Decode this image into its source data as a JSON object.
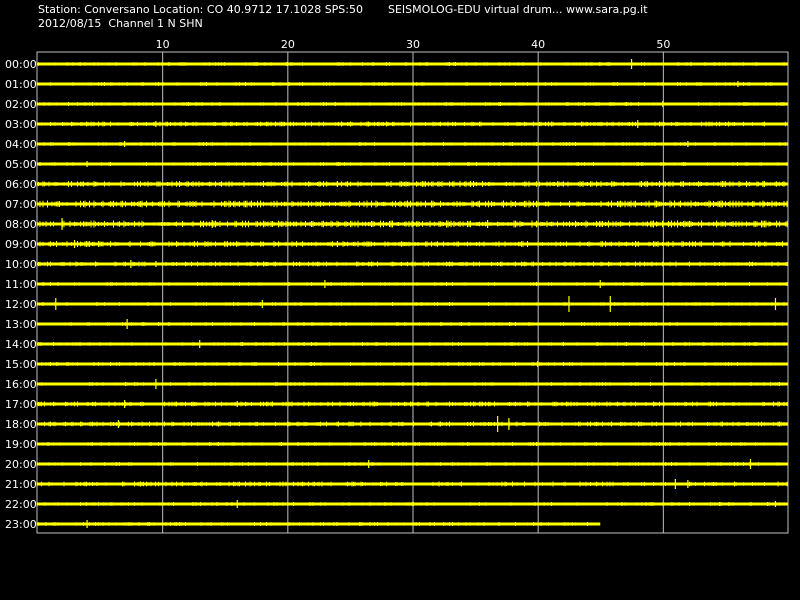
{
  "header": {
    "station_line": "Station: Conversano Location: CO 40.9712 17.1028 SPS:50",
    "date_channel_line": "2012/08/15  Channel 1 N SHN",
    "app_title": "SEISMOLOG-EDU virtual drum... www.sara.pg.it"
  },
  "colors": {
    "background": "#000000",
    "trace": "#ffff00",
    "grid": "#c0c0c0",
    "text": "#ffffff"
  },
  "chart_data": {
    "type": "line",
    "title": "",
    "xlabel": "",
    "ylabel": "",
    "x_ticks": [
      "10",
      "20",
      "30",
      "40",
      "50"
    ],
    "x_tick_values": [
      10,
      20,
      30,
      40,
      50
    ],
    "xlim": [
      0,
      60
    ],
    "grid": true,
    "rows": [
      {
        "label": "00:00",
        "end_minute": 60,
        "amplitude": 2,
        "spikes": [
          {
            "minute": 47.5,
            "value": 5
          }
        ]
      },
      {
        "label": "01:00",
        "end_minute": 60,
        "amplitude": 2,
        "spikes": [
          {
            "minute": 56,
            "value": 3
          }
        ]
      },
      {
        "label": "02:00",
        "end_minute": 60,
        "amplitude": 2,
        "spikes": [
          {
            "minute": 50,
            "value": 3
          }
        ]
      },
      {
        "label": "03:00",
        "end_minute": 60,
        "amplitude": 2.5,
        "spikes": [
          {
            "minute": 48,
            "value": 4
          },
          {
            "minute": 9.5,
            "value": 3
          }
        ]
      },
      {
        "label": "04:00",
        "end_minute": 60,
        "amplitude": 2,
        "spikes": [
          {
            "minute": 7,
            "value": 3
          },
          {
            "minute": 52,
            "value": 3
          }
        ]
      },
      {
        "label": "05:00",
        "end_minute": 60,
        "amplitude": 2,
        "spikes": [
          {
            "minute": 4,
            "value": 3
          }
        ]
      },
      {
        "label": "06:00",
        "end_minute": 60,
        "amplitude": 3,
        "spikes": [
          {
            "minute": 24,
            "value": 3
          },
          {
            "minute": 58,
            "value": 3
          }
        ]
      },
      {
        "label": "07:00",
        "end_minute": 60,
        "amplitude": 3.5,
        "spikes": [
          {
            "minute": 10,
            "value": 3
          },
          {
            "minute": 58,
            "value": 3
          }
        ]
      },
      {
        "label": "08:00",
        "end_minute": 60,
        "amplitude": 3.5,
        "spikes": [
          {
            "minute": 2,
            "value": 6
          },
          {
            "minute": 14,
            "value": 4
          },
          {
            "minute": 36,
            "value": 4
          }
        ]
      },
      {
        "label": "09:00",
        "end_minute": 60,
        "amplitude": 3,
        "spikes": [
          {
            "minute": 3,
            "value": 4
          },
          {
            "minute": 24,
            "value": 3
          }
        ]
      },
      {
        "label": "10:00",
        "end_minute": 60,
        "amplitude": 2.5,
        "spikes": [
          {
            "minute": 7.5,
            "value": 4
          },
          {
            "minute": 9.5,
            "value": 3
          }
        ]
      },
      {
        "label": "11:00",
        "end_minute": 60,
        "amplitude": 2,
        "spikes": [
          {
            "minute": 23,
            "value": 4
          },
          {
            "minute": 45,
            "value": 4
          }
        ]
      },
      {
        "label": "12:00",
        "end_minute": 60,
        "amplitude": 2,
        "spikes": [
          {
            "minute": 1.5,
            "value": 6
          },
          {
            "minute": 42.5,
            "value": 8
          },
          {
            "minute": 45.8,
            "value": 8
          },
          {
            "minute": 59,
            "value": 6
          },
          {
            "minute": 18,
            "value": 4
          }
        ]
      },
      {
        "label": "13:00",
        "end_minute": 60,
        "amplitude": 2,
        "spikes": [
          {
            "minute": 7.2,
            "value": 5
          }
        ]
      },
      {
        "label": "14:00",
        "end_minute": 60,
        "amplitude": 2,
        "spikes": [
          {
            "minute": 13,
            "value": 4
          }
        ]
      },
      {
        "label": "15:00",
        "end_minute": 60,
        "amplitude": 2,
        "spikes": [
          {
            "minute": 40,
            "value": 3
          }
        ]
      },
      {
        "label": "16:00",
        "end_minute": 60,
        "amplitude": 2,
        "spikes": [
          {
            "minute": 9.5,
            "value": 5
          }
        ]
      },
      {
        "label": "17:00",
        "end_minute": 60,
        "amplitude": 2.5,
        "spikes": [
          {
            "minute": 7,
            "value": 4
          },
          {
            "minute": 16,
            "value": 3
          }
        ]
      },
      {
        "label": "18:00",
        "end_minute": 60,
        "amplitude": 2.5,
        "spikes": [
          {
            "minute": 36.8,
            "value": 8
          },
          {
            "minute": 37.7,
            "value": 6
          },
          {
            "minute": 6.5,
            "value": 4
          }
        ]
      },
      {
        "label": "19:00",
        "end_minute": 60,
        "amplitude": 2,
        "spikes": []
      },
      {
        "label": "20:00",
        "end_minute": 60,
        "amplitude": 2,
        "spikes": [
          {
            "minute": 26.5,
            "value": 4
          },
          {
            "minute": 57,
            "value": 5
          }
        ]
      },
      {
        "label": "21:00",
        "end_minute": 60,
        "amplitude": 2.5,
        "spikes": [
          {
            "minute": 51,
            "value": 5
          },
          {
            "minute": 52,
            "value": 4
          }
        ]
      },
      {
        "label": "22:00",
        "end_minute": 60,
        "amplitude": 2,
        "spikes": [
          {
            "minute": 16,
            "value": 4
          },
          {
            "minute": 59,
            "value": 3
          }
        ]
      },
      {
        "label": "23:00",
        "end_minute": 45,
        "amplitude": 2,
        "spikes": [
          {
            "minute": 4,
            "value": 4
          }
        ]
      }
    ]
  }
}
